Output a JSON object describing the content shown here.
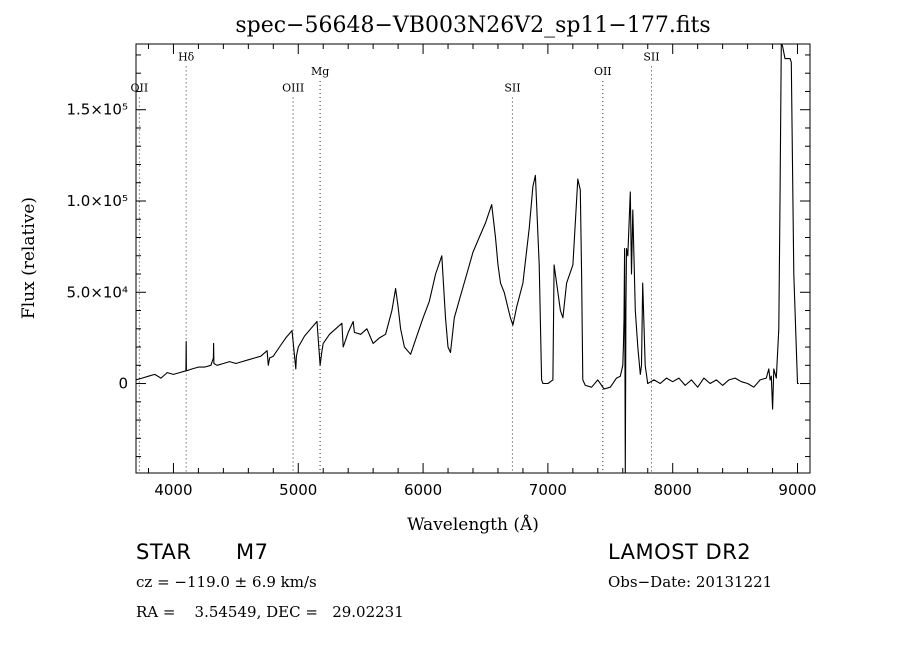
{
  "info": {
    "object_class": "STAR",
    "subclass": "M7",
    "survey": "LAMOST DR2",
    "redshift": "cz = −119.0 ± 6.9 km/s",
    "obs_date": "Obs−Date: 20131221",
    "coords": "RA =    3.54549, DEC =   29.02231"
  },
  "chart_data": {
    "type": "line",
    "title": "spec−56648−VB003N26V2_sp11−177.fits",
    "xlabel": "Wavelength (Å)",
    "ylabel": "Flux (relative)",
    "xlim": [
      3700,
      9100
    ],
    "ylim": [
      -49000,
      186000
    ],
    "grid": false,
    "x_ticks": [
      4000,
      5000,
      6000,
      7000,
      8000,
      9000
    ],
    "x_tick_labels": [
      "4000",
      "5000",
      "6000",
      "7000",
      "8000",
      "9000"
    ],
    "y_ticks": [
      0,
      50000,
      100000,
      150000
    ],
    "y_tick_labels": [
      "0",
      "5.0×10⁴",
      "1.0×10⁵",
      "1.5×10⁵"
    ],
    "lines": [
      {
        "label": "OII",
        "x": 3727,
        "label_y": 160000
      },
      {
        "label": "Hδ",
        "x": 4102,
        "label_y": 177000
      },
      {
        "label": "OIII",
        "x": 4959,
        "label_y": 160000
      },
      {
        "label": "Mg",
        "x": 5175,
        "label_y": 169000
      },
      {
        "label": "SII",
        "x": 6716,
        "label_y": 160000
      },
      {
        "label": "OII",
        "x": 7440,
        "label_y": 169000
      },
      {
        "label": "SII",
        "x": 7830,
        "label_y": 177000
      }
    ],
    "series": [
      {
        "x": [
          3700,
          3750,
          3800,
          3850,
          3900,
          3950,
          4000,
          4050,
          4100,
          4102,
          4104,
          4150,
          4200,
          4250,
          4300,
          4320,
          4322,
          4324,
          4350,
          4400,
          4450,
          4500,
          4550,
          4600,
          4650,
          4700,
          4750,
          4760,
          4770,
          4800,
          4850,
          4900,
          4950,
          4980,
          4985,
          5000,
          5050,
          5100,
          5150,
          5175,
          5190,
          5200,
          5250,
          5300,
          5350,
          5360,
          5400,
          5440,
          5450,
          5500,
          5550,
          5600,
          5650,
          5700,
          5750,
          5780,
          5800,
          5820,
          5850,
          5900,
          5950,
          6000,
          6050,
          6100,
          6150,
          6180,
          6200,
          6220,
          6250,
          6300,
          6350,
          6400,
          6450,
          6500,
          6550,
          6580,
          6600,
          6620,
          6650,
          6700,
          6720,
          6750,
          6800,
          6850,
          6880,
          6900,
          6930,
          6950,
          6960,
          6980,
          7000,
          7040,
          7050,
          7100,
          7120,
          7150,
          7200,
          7240,
          7260,
          7270,
          7280,
          7300,
          7350,
          7400,
          7450,
          7500,
          7550,
          7580,
          7600,
          7605,
          7610,
          7615,
          7620,
          7625,
          7630,
          7640,
          7660,
          7670,
          7680,
          7700,
          7720,
          7740,
          7750,
          7760,
          7780,
          7800,
          7850,
          7900,
          7950,
          8000,
          8050,
          8100,
          8150,
          8200,
          8250,
          8300,
          8350,
          8400,
          8450,
          8500,
          8550,
          8600,
          8650,
          8700,
          8750,
          8770,
          8780,
          8790,
          8800,
          8810,
          8830,
          8850,
          8860,
          8870,
          8880,
          8900,
          8940,
          8950,
          8960,
          8970,
          9000,
          9010
        ],
        "y": [
          2000,
          3000,
          4000,
          5000,
          3000,
          6000,
          5000,
          6000,
          7000,
          23000,
          7000,
          8000,
          9000,
          9000,
          10000,
          14000,
          22000,
          11000,
          10000,
          11000,
          12000,
          11000,
          12000,
          13000,
          14000,
          15000,
          18000,
          10000,
          14000,
          15000,
          20000,
          25000,
          29000,
          8000,
          15000,
          20000,
          26000,
          30000,
          34000,
          10000,
          18000,
          22000,
          27000,
          30000,
          33000,
          20000,
          28000,
          34000,
          28000,
          27000,
          30000,
          22000,
          25000,
          27000,
          40000,
          52000,
          42000,
          30000,
          20000,
          16000,
          26000,
          36000,
          45000,
          60000,
          70000,
          36000,
          20000,
          17000,
          36000,
          48000,
          60000,
          72000,
          80000,
          88000,
          98000,
          80000,
          65000,
          55000,
          50000,
          36000,
          32000,
          42000,
          55000,
          85000,
          108000,
          114000,
          65000,
          2000,
          0,
          0,
          0,
          2000,
          65000,
          40000,
          36000,
          55000,
          65000,
          112000,
          106000,
          60000,
          2000,
          -1000,
          -2000,
          2000,
          -3000,
          -2000,
          3000,
          4000,
          10000,
          20000,
          35000,
          74000,
          -49000,
          40000,
          74000,
          70000,
          105000,
          60000,
          95000,
          40000,
          20000,
          5000,
          10000,
          55000,
          10000,
          0,
          2000,
          0,
          3000,
          1000,
          3000,
          -1000,
          2000,
          -2000,
          3000,
          0,
          2000,
          -1000,
          2000,
          3000,
          1000,
          0,
          -2000,
          2000,
          3000,
          8000,
          2000,
          4000,
          -14000,
          8000,
          3000,
          30000,
          100000,
          187000,
          185000,
          178000,
          178000,
          176000,
          120000,
          60000,
          0,
          0
        ]
      }
    ]
  }
}
